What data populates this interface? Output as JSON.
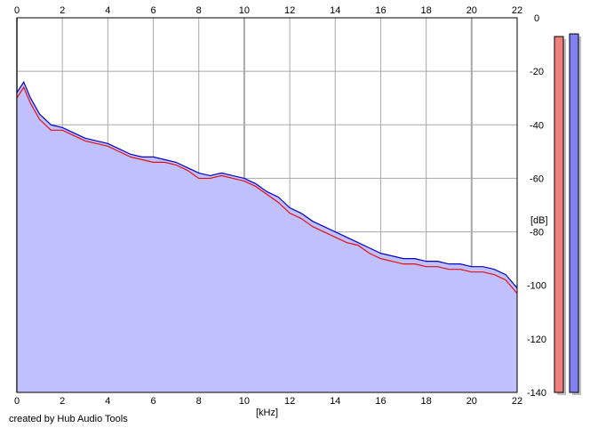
{
  "chart_data": {
    "type": "area",
    "xlabel": "[kHz]",
    "ylabel": "[dB]",
    "xlim": [
      0,
      22
    ],
    "ylim": [
      -140,
      0
    ],
    "x_ticks": [
      0,
      2,
      4,
      6,
      8,
      10,
      12,
      14,
      16,
      18,
      20,
      22
    ],
    "y_ticks": [
      0,
      -20,
      -40,
      -60,
      -80,
      -100,
      -120,
      -140
    ],
    "grid": true,
    "credit": "created by Hub Audio Tools",
    "series": [
      {
        "color": "#e01010",
        "x": [
          0,
          0.3,
          0.6,
          1,
          1.5,
          2,
          2.5,
          3,
          3.5,
          4,
          4.5,
          5,
          5.5,
          6,
          6.5,
          7,
          7.5,
          8,
          8.5,
          9,
          9.5,
          10,
          10.5,
          11,
          11.5,
          12,
          12.5,
          13,
          13.5,
          14,
          14.5,
          15,
          15.5,
          16,
          16.5,
          17,
          17.5,
          18,
          18.5,
          19,
          19.5,
          20,
          20.5,
          21,
          21.5,
          22
        ],
        "values": [
          -30,
          -26,
          -32,
          -38,
          -42,
          -42,
          -44,
          -46,
          -47,
          -48,
          -50,
          -52,
          -53,
          -54,
          -54,
          -55,
          -57,
          -60,
          -60,
          -59,
          -60,
          -61,
          -63,
          -66,
          -69,
          -73,
          -75,
          -78,
          -80,
          -82,
          -84,
          -85,
          -88,
          -90,
          -91,
          -92,
          -92,
          -93,
          -93,
          -94,
          -94,
          -95,
          -95,
          -96,
          -98,
          -103
        ]
      },
      {
        "color": "#0000c8",
        "x": [
          0,
          0.3,
          0.6,
          1,
          1.5,
          2,
          2.5,
          3,
          3.5,
          4,
          4.5,
          5,
          5.5,
          6,
          6.5,
          7,
          7.5,
          8,
          8.5,
          9,
          9.5,
          10,
          10.5,
          11,
          11.5,
          12,
          12.5,
          13,
          13.5,
          14,
          14.5,
          15,
          15.5,
          16,
          16.5,
          17,
          17.5,
          18,
          18.5,
          19,
          19.5,
          20,
          20.5,
          21,
          21.5,
          22
        ],
        "values": [
          -28,
          -24,
          -30,
          -36,
          -40,
          -41,
          -43,
          -45,
          -46,
          -47,
          -49,
          -51,
          -52,
          -52,
          -53,
          -54,
          -56,
          -58,
          -59,
          -58,
          -59,
          -60,
          -62,
          -65,
          -67,
          -71,
          -73,
          -76,
          -78,
          -80,
          -82,
          -84,
          -86,
          -88,
          -89,
          -90,
          -90,
          -91,
          -91,
          -92,
          -92,
          -93,
          -93,
          -94,
          -96,
          -101
        ]
      }
    ],
    "fill_color": "#c0c0ff",
    "level_meters": [
      {
        "channel": "left",
        "color": "#f08080",
        "peak_db": -7
      },
      {
        "channel": "right",
        "color": "#8080f0",
        "peak_db": -6
      }
    ]
  }
}
